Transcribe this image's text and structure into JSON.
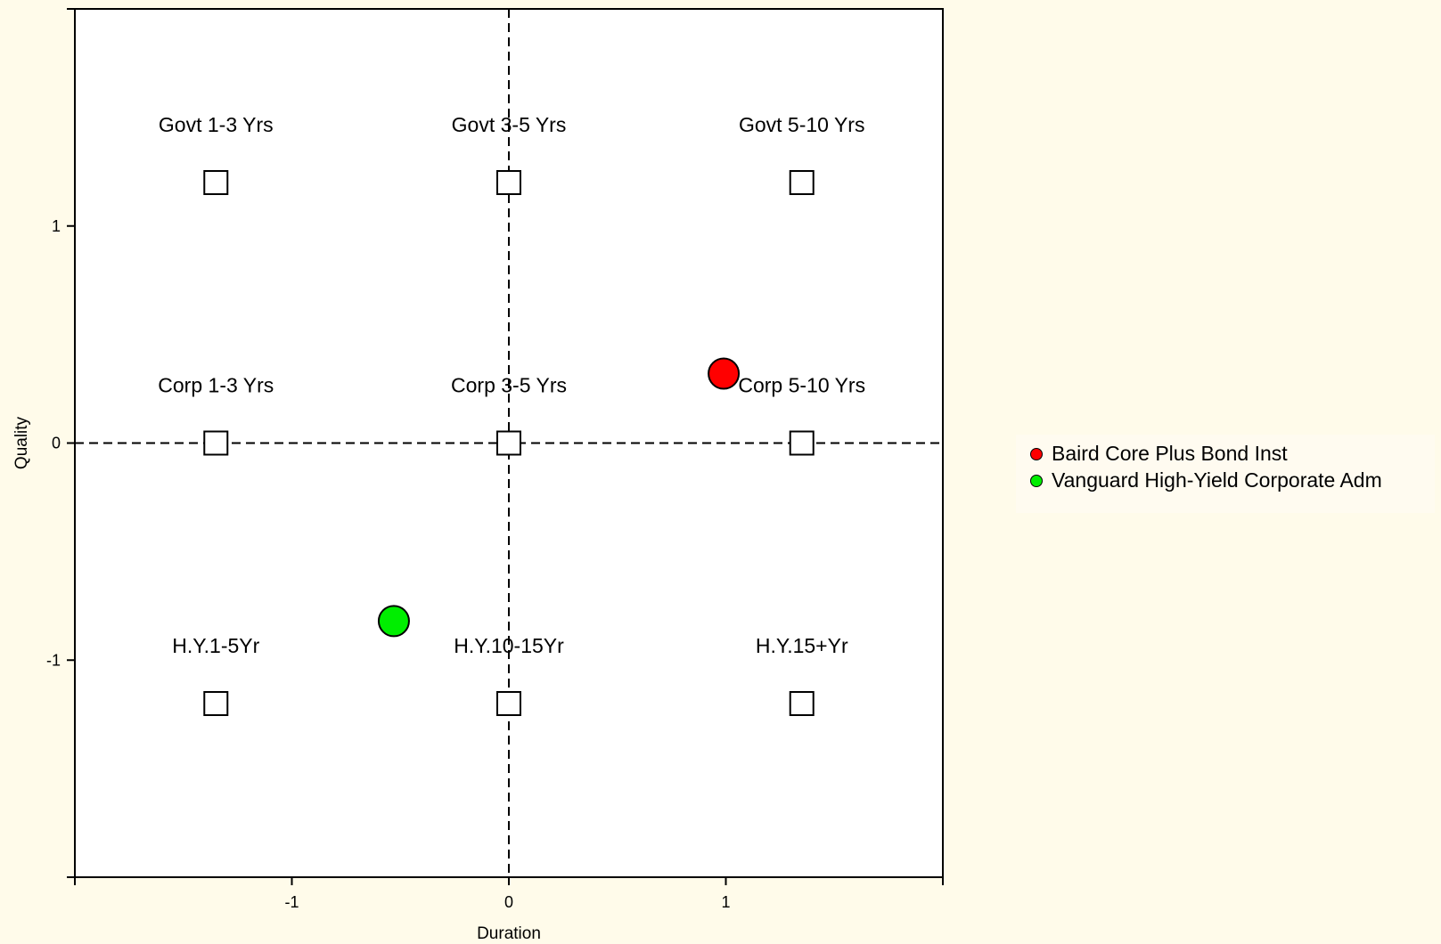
{
  "chart_data": {
    "type": "scatter",
    "xlabel": "Duration",
    "ylabel": "Quality",
    "xlim": [
      -2,
      2
    ],
    "ylim": [
      -2,
      2
    ],
    "x_ticks": [
      -1,
      0,
      1
    ],
    "x_tick_labels": [
      "-1",
      "0",
      "1"
    ],
    "y_ticks": [
      -1,
      0,
      1
    ],
    "y_tick_labels": [
      "-1",
      "0",
      "1"
    ],
    "reference_lines": {
      "x": 0,
      "y": 0,
      "style": "dashed"
    },
    "grid": false,
    "legend_position": "right",
    "style_boxes": [
      {
        "label": "Govt 1-3 Yrs",
        "x": -1.35,
        "y": 1.2
      },
      {
        "label": "Govt 3-5 Yrs",
        "x": 0,
        "y": 1.2
      },
      {
        "label": "Govt 5-10 Yrs",
        "x": 1.35,
        "y": 1.2
      },
      {
        "label": "Corp 1-3 Yrs",
        "x": -1.35,
        "y": 0
      },
      {
        "label": "Corp 3-5 Yrs",
        "x": 0,
        "y": 0
      },
      {
        "label": "Corp 5-10 Yrs",
        "x": 1.35,
        "y": 0
      },
      {
        "label": "H.Y.1-5Yr",
        "x": -1.35,
        "y": -1.2
      },
      {
        "label": "H.Y.10-15Yr",
        "x": 0,
        "y": -1.2
      },
      {
        "label": "H.Y.15+Yr",
        "x": 1.35,
        "y": -1.2
      }
    ],
    "series": [
      {
        "name": "Baird Core Plus Bond Inst",
        "x": 0.99,
        "y": 0.32,
        "color": "#ff0000"
      },
      {
        "name": "Vanguard High-Yield Corporate Adm",
        "x": -0.53,
        "y": -0.82,
        "color": "#00ee00"
      }
    ]
  }
}
